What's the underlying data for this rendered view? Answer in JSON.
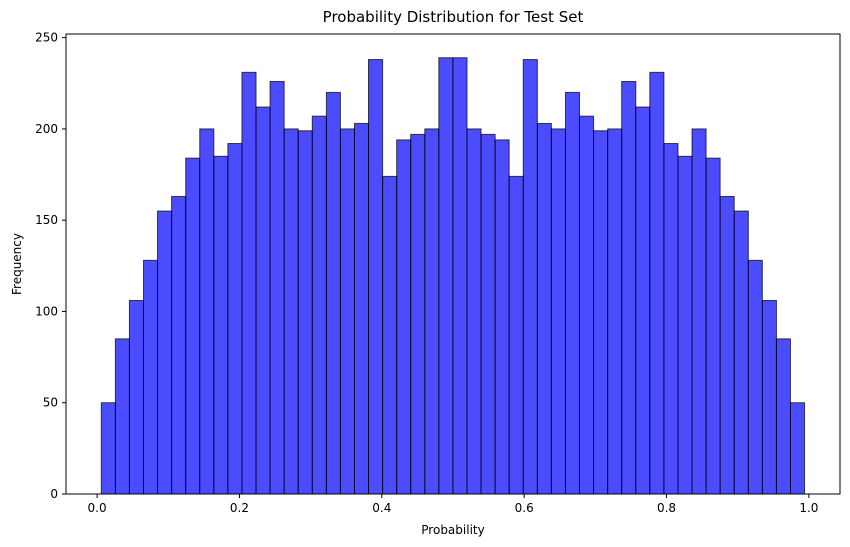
{
  "chart_data": {
    "type": "bar",
    "title": "Probability Distribution for Test Set",
    "xlabel": "Probability",
    "ylabel": "Frequency",
    "xlim": [
      -0.0437,
      1.0437
    ],
    "ylim": [
      0,
      252
    ],
    "xticks": [
      0.0,
      0.2,
      0.4,
      0.6,
      0.8,
      1.0
    ],
    "xtick_labels": [
      "0.0",
      "0.2",
      "0.4",
      "0.6",
      "0.8",
      "1.0"
    ],
    "yticks": [
      0,
      50,
      100,
      150,
      200,
      250
    ],
    "ytick_labels": [
      "0",
      "50",
      "100",
      "150",
      "200",
      "250"
    ],
    "bin_edges": [
      0.0059,
      0.0257,
      0.0454,
      0.0652,
      0.0849,
      0.1047,
      0.1245,
      0.1442,
      0.164,
      0.1837,
      0.2035,
      0.2233,
      0.243,
      0.2628,
      0.2825,
      0.3023,
      0.3221,
      0.3418,
      0.3616,
      0.3813,
      0.4011,
      0.4209,
      0.4406,
      0.4604,
      0.4801,
      0.4999,
      0.5197,
      0.5394,
      0.5592,
      0.5789,
      0.5987,
      0.6185,
      0.6382,
      0.658,
      0.6777,
      0.6975,
      0.7173,
      0.737,
      0.7568,
      0.7765,
      0.7963,
      0.8161,
      0.8358,
      0.8556,
      0.8753,
      0.8951,
      0.9149,
      0.9346,
      0.9544,
      0.9741,
      0.9939
    ],
    "values": [
      50,
      85,
      106,
      128,
      155,
      163,
      184,
      200,
      185,
      192,
      231,
      212,
      226,
      200,
      199,
      207,
      220,
      200,
      203,
      238,
      174,
      194,
      197,
      200,
      239,
      239,
      200,
      197,
      194,
      174,
      238,
      203,
      200,
      220,
      207,
      199,
      200,
      226,
      212,
      231,
      192,
      185,
      200,
      184,
      163,
      155,
      128,
      106,
      85,
      50
    ],
    "bar_color": "#0000ff",
    "bar_alpha": 0.7,
    "edge_color": "#000000",
    "grid": false
  }
}
